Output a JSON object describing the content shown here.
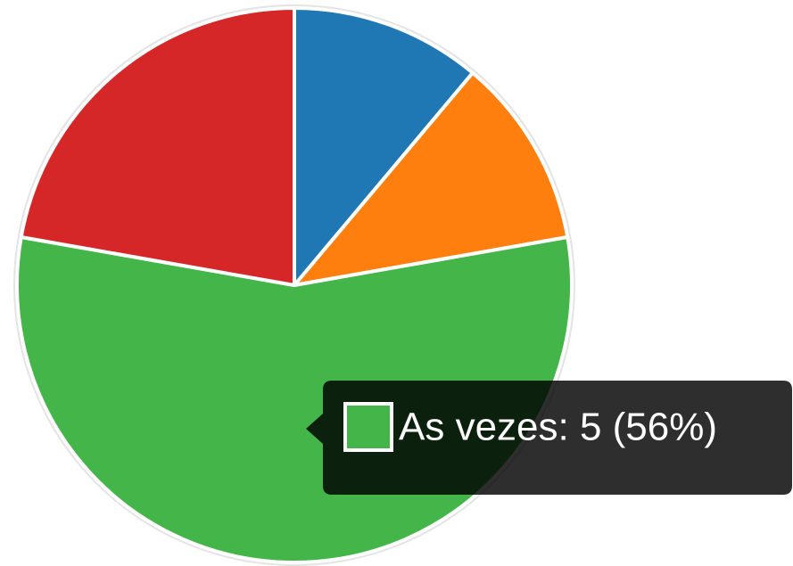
{
  "chart_data": {
    "type": "pie",
    "categories": [
      null,
      null,
      "As vezes",
      null
    ],
    "values": [
      1,
      1,
      5,
      2
    ],
    "colors": [
      "#1f77b4",
      "#ff7f0e",
      "#44b649",
      "#d62728"
    ],
    "tooltip": "As vezes: 5 (56%)"
  }
}
